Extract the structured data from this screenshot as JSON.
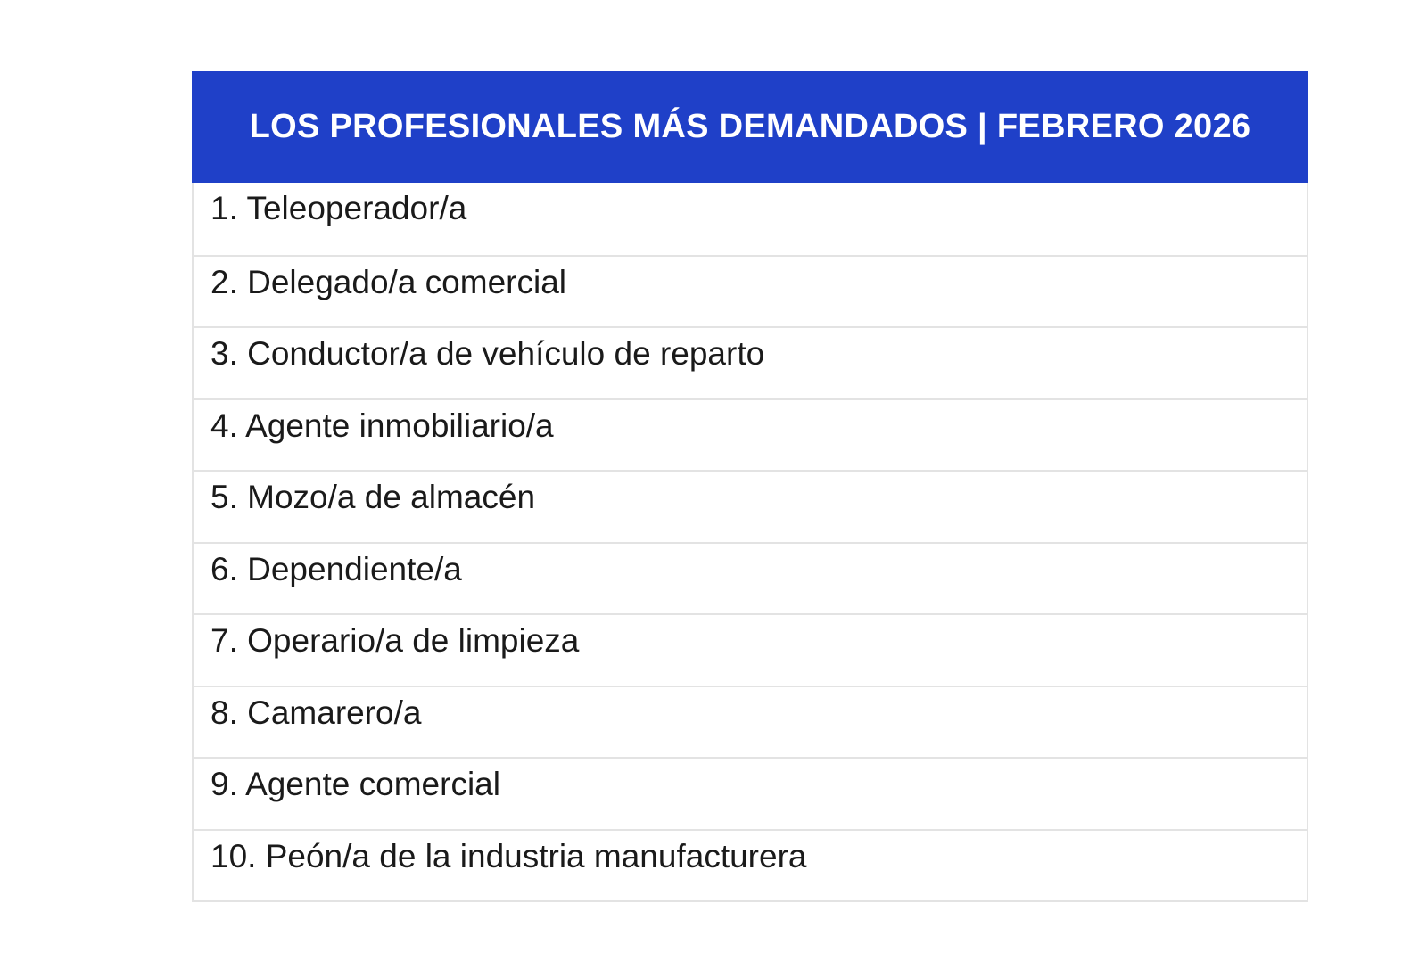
{
  "table": {
    "title": "LOS PROFESIONALES MÁS DEMANDADOS | FEBRERO 2026",
    "header_color": "#1f40c8",
    "rows": [
      {
        "rank": 1,
        "label": "1. Teleoperador/a"
      },
      {
        "rank": 2,
        "label": "2. Delegado/a comercial"
      },
      {
        "rank": 3,
        "label": "3. Conductor/a de vehículo de reparto"
      },
      {
        "rank": 4,
        "label": "4. Agente inmobiliario/a"
      },
      {
        "rank": 5,
        "label": "5. Mozo/a de almacén"
      },
      {
        "rank": 6,
        "label": "6. Dependiente/a"
      },
      {
        "rank": 7,
        "label": "7. Operario/a de limpieza"
      },
      {
        "rank": 8,
        "label": "8. Camarero/a"
      },
      {
        "rank": 9,
        "label": "9. Agente comercial"
      },
      {
        "rank": 10,
        "label": "10. Peón/a de la industria manufacturera"
      }
    ]
  }
}
